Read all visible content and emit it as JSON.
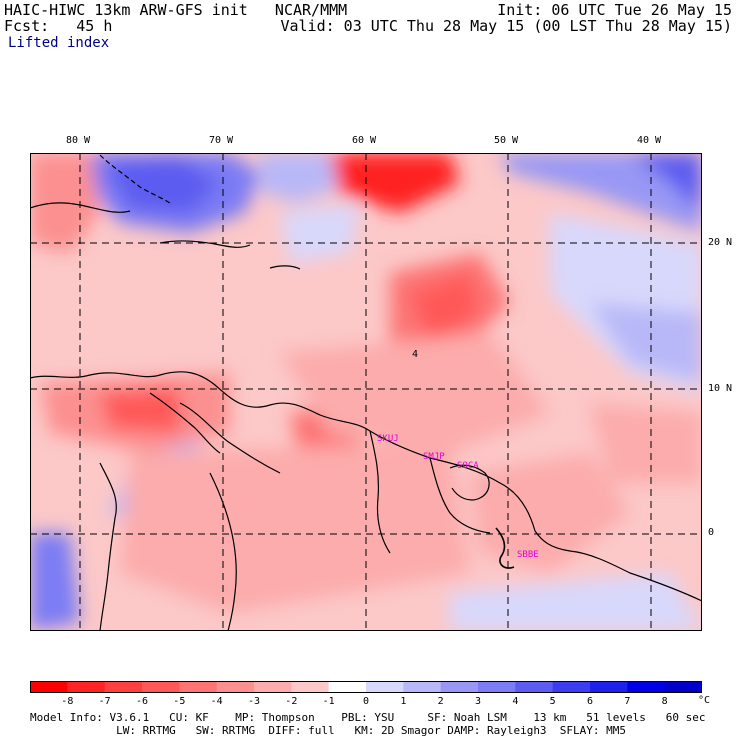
{
  "header": {
    "line1_left": "HAIC-HIWC 13km ARW-GFS init   NCAR/MMM",
    "line1_right": "Init: 06 UTC Tue 26 May 15",
    "line2_left": "Fcst:   45 h",
    "line2_right": "Valid: 03 UTC Thu 28 May 15 (00 LST Thu 28 May 15)",
    "field_name": "Lifted index"
  },
  "map": {
    "lon_labels": [
      "80 W",
      "70 W",
      "60 W",
      "50 W",
      "40 W"
    ],
    "lat_labels": [
      "20 N",
      "10 N",
      "0"
    ],
    "contour_label": "4",
    "stations": [
      "SKUJ",
      "SMJP",
      "SOCA",
      "SBBE"
    ],
    "colors": {
      "station": "#e000e0",
      "grid": "#000000",
      "coast": "#000000"
    }
  },
  "colorbar": {
    "labels": [
      "-8",
      "-7",
      "-6",
      "-5",
      "-4",
      "-3",
      "-2",
      "-1",
      "0",
      "1",
      "2",
      "3",
      "4",
      "5",
      "6",
      "7",
      "8"
    ],
    "unit": "°C",
    "colors": [
      "#ff0000",
      "#ff2424",
      "#ff4040",
      "#ff5858",
      "#fc7474",
      "#fc9090",
      "#fcacac",
      "#fcc8c8",
      "#ffffff",
      "#d8d8fc",
      "#b8b8f8",
      "#9898f4",
      "#7c7cf4",
      "#5c5cf0",
      "#3c3cf0",
      "#2020ec",
      "#0000e8",
      "#0000c8"
    ]
  },
  "footer": {
    "line1": "Model Info: V3.6.1   CU: KF    MP: Thompson    PBL: YSU     SF: Noah LSM    13 km   51 levels   60 sec",
    "line2": "             LW: RRTMG   SW: RRTMG  DIFF: full   KM: 2D Smagor DAMP: Rayleigh3  SFLAY: MM5"
  }
}
